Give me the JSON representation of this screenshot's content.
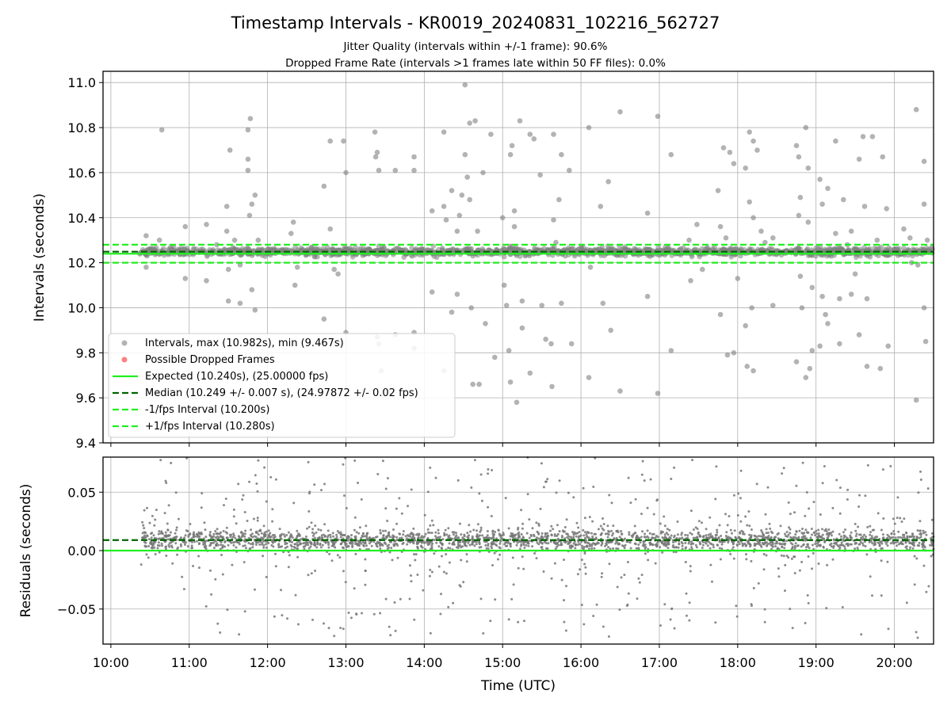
{
  "chart_data": {
    "title": "Timestamp Intervals - KR0019_20240831_102216_562727",
    "subtitle1": "Jitter Quality (intervals within +/-1 frame): 90.6%",
    "subtitle2": "Dropped Frame Rate (intervals >1 frames late within 50 FF files): 0.0%",
    "colors": {
      "points": "#808080",
      "dropped": "#ff6060",
      "expected": "#22ee22",
      "median": "#006400",
      "bounds": "#22ee22",
      "grid": "#b0b0b0"
    },
    "x_ticks": [
      "10:00",
      "11:00",
      "12:00",
      "13:00",
      "14:00",
      "15:00",
      "16:00",
      "17:00",
      "18:00",
      "19:00",
      "20:00"
    ],
    "xlabel": "Time (UTC)",
    "xlim_hours": [
      9.9,
      20.5
    ],
    "data_start_hours": 10.37,
    "data_end_hours": 20.5,
    "upper": {
      "type": "scatter",
      "ylabel": "Intervals (seconds)",
      "ylim": [
        9.4,
        11.05
      ],
      "y_ticks": [
        "9.4",
        "9.6",
        "9.8",
        "10.0",
        "10.2",
        "10.4",
        "10.6",
        "10.8",
        "11.0"
      ],
      "expected": 10.24,
      "median": 10.249,
      "minus_bound": 10.2,
      "plus_bound": 10.28,
      "max": 10.982,
      "min": 9.467,
      "legend": [
        "Intervals, max (10.982s), min (9.467s)",
        "Possible Dropped Frames",
        "Expected (10.240s), (25.00000 fps)",
        "Median (10.249 +/- 0.007 s), (24.97872 +/- 0.02 fps)",
        "-1/fps Interval (10.200s)",
        "+1/fps Interval (10.280s)"
      ],
      "outliers": [
        [
          10.45,
          10.32
        ],
        [
          10.45,
          10.18
        ],
        [
          10.65,
          10.79
        ],
        [
          10.62,
          10.3
        ],
        [
          10.8,
          10.27
        ],
        [
          10.95,
          10.13
        ],
        [
          10.95,
          10.36
        ],
        [
          11.1,
          10.25
        ],
        [
          11.22,
          10.37
        ],
        [
          11.22,
          10.12
        ],
        [
          11.35,
          10.28
        ],
        [
          11.48,
          10.45
        ],
        [
          11.48,
          10.34
        ],
        [
          11.5,
          10.17
        ],
        [
          11.5,
          10.03
        ],
        [
          11.52,
          10.7
        ],
        [
          11.58,
          10.3
        ],
        [
          11.65,
          10.02
        ],
        [
          11.65,
          10.19
        ],
        [
          11.75,
          10.79
        ],
        [
          11.75,
          10.66
        ],
        [
          11.75,
          10.61
        ],
        [
          11.77,
          10.41
        ],
        [
          11.78,
          10.84
        ],
        [
          11.8,
          10.46
        ],
        [
          11.8,
          10.08
        ],
        [
          11.84,
          10.5
        ],
        [
          11.84,
          9.99
        ],
        [
          11.88,
          10.3
        ],
        [
          12.3,
          10.33
        ],
        [
          12.33,
          10.38
        ],
        [
          12.35,
          10.1
        ],
        [
          12.38,
          10.18
        ],
        [
          12.72,
          10.54
        ],
        [
          12.72,
          9.95
        ],
        [
          12.8,
          10.74
        ],
        [
          12.8,
          10.35
        ],
        [
          12.85,
          10.17
        ],
        [
          12.9,
          10.15
        ],
        [
          12.97,
          10.74
        ],
        [
          13.0,
          10.6
        ],
        [
          13.0,
          9.89
        ],
        [
          13.37,
          10.78
        ],
        [
          13.38,
          10.67
        ],
        [
          13.4,
          10.69
        ],
        [
          13.4,
          9.87
        ],
        [
          13.42,
          10.61
        ],
        [
          13.42,
          9.84
        ],
        [
          13.45,
          9.72
        ],
        [
          13.63,
          10.61
        ],
        [
          13.63,
          9.88
        ],
        [
          13.87,
          10.67
        ],
        [
          13.87,
          10.61
        ],
        [
          13.87,
          9.82
        ],
        [
          13.87,
          9.89
        ],
        [
          14.1,
          10.43
        ],
        [
          14.1,
          10.07
        ],
        [
          14.25,
          10.45
        ],
        [
          14.25,
          9.72
        ],
        [
          14.25,
          10.78
        ],
        [
          14.28,
          10.39
        ],
        [
          14.35,
          10.52
        ],
        [
          14.35,
          9.98
        ],
        [
          14.42,
          10.34
        ],
        [
          14.42,
          10.06
        ],
        [
          14.45,
          10.41
        ],
        [
          14.48,
          10.5
        ],
        [
          14.52,
          10.68
        ],
        [
          14.52,
          10.99
        ],
        [
          14.55,
          10.58
        ],
        [
          14.58,
          10.82
        ],
        [
          14.58,
          10.48
        ],
        [
          14.6,
          10.0
        ],
        [
          14.62,
          9.66
        ],
        [
          14.62,
          10.23
        ],
        [
          14.65,
          10.83
        ],
        [
          14.68,
          10.34
        ],
        [
          14.7,
          9.66
        ],
        [
          14.75,
          10.6
        ],
        [
          14.78,
          9.93
        ],
        [
          14.85,
          10.77
        ],
        [
          14.9,
          9.78
        ],
        [
          15.0,
          10.4
        ],
        [
          15.02,
          10.1
        ],
        [
          15.05,
          10.01
        ],
        [
          15.08,
          9.81
        ],
        [
          15.1,
          10.68
        ],
        [
          15.1,
          9.67
        ],
        [
          15.12,
          10.72
        ],
        [
          15.15,
          10.43
        ],
        [
          15.15,
          10.36
        ],
        [
          15.18,
          9.58
        ],
        [
          15.22,
          10.83
        ],
        [
          15.25,
          10.03
        ],
        [
          15.25,
          9.91
        ],
        [
          15.35,
          10.77
        ],
        [
          15.35,
          9.71
        ],
        [
          15.4,
          10.75
        ],
        [
          15.45,
          10.24
        ],
        [
          15.48,
          10.59
        ],
        [
          15.5,
          10.01
        ],
        [
          15.55,
          9.86
        ],
        [
          15.62,
          9.84
        ],
        [
          15.63,
          9.65
        ],
        [
          15.65,
          10.77
        ],
        [
          15.65,
          10.39
        ],
        [
          15.68,
          10.29
        ],
        [
          15.72,
          10.48
        ],
        [
          15.75,
          10.68
        ],
        [
          15.75,
          10.02
        ],
        [
          15.8,
          10.23
        ],
        [
          15.85,
          10.61
        ],
        [
          15.88,
          9.84
        ],
        [
          15.92,
          10.23
        ],
        [
          16.1,
          10.8
        ],
        [
          16.1,
          9.69
        ],
        [
          16.12,
          10.18
        ],
        [
          16.25,
          10.45
        ],
        [
          16.28,
          10.02
        ],
        [
          16.35,
          10.56
        ],
        [
          16.38,
          9.9
        ],
        [
          16.5,
          10.87
        ],
        [
          16.5,
          9.63
        ],
        [
          16.85,
          10.42
        ],
        [
          16.85,
          10.05
        ],
        [
          16.98,
          10.85
        ],
        [
          16.98,
          9.62
        ],
        [
          17.15,
          10.68
        ],
        [
          17.15,
          9.81
        ],
        [
          17.38,
          10.3
        ],
        [
          17.4,
          10.12
        ],
        [
          17.48,
          10.37
        ],
        [
          17.55,
          10.17
        ],
        [
          17.75,
          10.52
        ],
        [
          17.78,
          9.97
        ],
        [
          17.78,
          10.36
        ],
        [
          17.82,
          10.71
        ],
        [
          17.85,
          10.31
        ],
        [
          17.87,
          9.79
        ],
        [
          17.9,
          10.69
        ],
        [
          17.95,
          10.64
        ],
        [
          17.95,
          9.8
        ],
        [
          18.0,
          10.13
        ],
        [
          18.1,
          10.62
        ],
        [
          18.1,
          9.92
        ],
        [
          18.12,
          9.74
        ],
        [
          18.15,
          10.78
        ],
        [
          18.15,
          10.47
        ],
        [
          18.18,
          10.0
        ],
        [
          18.2,
          10.74
        ],
        [
          18.2,
          10.4
        ],
        [
          18.2,
          9.72
        ],
        [
          18.25,
          10.7
        ],
        [
          18.3,
          10.34
        ],
        [
          18.35,
          10.29
        ],
        [
          18.45,
          10.31
        ],
        [
          18.45,
          10.01
        ],
        [
          18.75,
          10.72
        ],
        [
          18.75,
          9.76
        ],
        [
          18.78,
          10.67
        ],
        [
          18.78,
          10.41
        ],
        [
          18.8,
          10.49
        ],
        [
          18.8,
          10.14
        ],
        [
          18.82,
          10.0
        ],
        [
          18.87,
          10.8
        ],
        [
          18.87,
          9.69
        ],
        [
          18.9,
          10.62
        ],
        [
          18.9,
          10.38
        ],
        [
          18.92,
          9.73
        ],
        [
          18.95,
          10.09
        ],
        [
          18.95,
          9.81
        ],
        [
          19.05,
          10.57
        ],
        [
          19.05,
          10.24
        ],
        [
          19.05,
          9.83
        ],
        [
          19.08,
          10.46
        ],
        [
          19.08,
          10.05
        ],
        [
          19.12,
          9.97
        ],
        [
          19.15,
          10.53
        ],
        [
          19.15,
          9.93
        ],
        [
          19.25,
          10.74
        ],
        [
          19.25,
          10.33
        ],
        [
          19.3,
          10.04
        ],
        [
          19.3,
          9.84
        ],
        [
          19.35,
          10.48
        ],
        [
          19.4,
          10.28
        ],
        [
          19.45,
          10.34
        ],
        [
          19.45,
          10.06
        ],
        [
          19.5,
          10.15
        ],
        [
          19.55,
          10.66
        ],
        [
          19.55,
          9.88
        ],
        [
          19.6,
          10.76
        ],
        [
          19.62,
          10.45
        ],
        [
          19.65,
          10.04
        ],
        [
          19.65,
          9.74
        ],
        [
          19.72,
          10.76
        ],
        [
          19.78,
          10.3
        ],
        [
          19.82,
          9.73
        ],
        [
          19.85,
          10.67
        ],
        [
          19.9,
          10.44
        ],
        [
          19.9,
          10.25
        ],
        [
          19.92,
          9.83
        ],
        [
          20.12,
          10.35
        ],
        [
          20.2,
          10.31
        ],
        [
          20.22,
          10.2
        ],
        [
          20.28,
          10.88
        ],
        [
          20.28,
          9.59
        ],
        [
          20.3,
          10.19
        ],
        [
          20.38,
          10.65
        ],
        [
          20.38,
          10.46
        ],
        [
          20.38,
          10.0
        ],
        [
          20.4,
          9.85
        ],
        [
          20.42,
          10.3
        ]
      ]
    },
    "lower": {
      "type": "scatter",
      "ylabel": "Residuals (seconds)",
      "ylim": [
        -0.08,
        0.08
      ],
      "y_ticks": [
        "−0.05",
        "0.00",
        "0.05"
      ],
      "y_tick_values": [
        -0.05,
        0.0,
        0.05
      ],
      "expected_line": 0.0,
      "median_line": 0.009
    }
  }
}
